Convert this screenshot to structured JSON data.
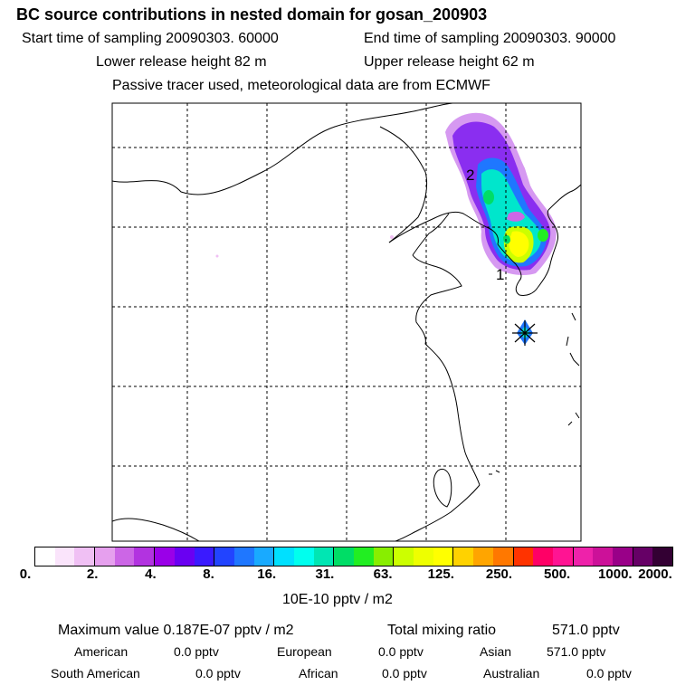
{
  "header": {
    "title": "BC  source contributions in nested domain for gosan_200903",
    "start_time": "Start time of sampling 20090303. 60000",
    "end_time": "End time of sampling 20090303. 90000",
    "lower_release": "Lower release height   82 m",
    "upper_release": "Upper release height   62 m",
    "tracer_note": "Passive tracer used, meteorological data are from ECMWF"
  },
  "map": {
    "labels": [
      {
        "text": "2"
      },
      {
        "text": "1"
      }
    ]
  },
  "colorbar": {
    "colors": [
      "#ffffff",
      "#fae4fb",
      "#f0c0f4",
      "#e6a0ee",
      "#cc66e6",
      "#b233e0",
      "#9a00e8",
      "#6a00f2",
      "#3a1aff",
      "#2244ff",
      "#1f77ff",
      "#19aaff",
      "#00e0ff",
      "#00ffee",
      "#00e6b3",
      "#00dd66",
      "#22ee22",
      "#88ee00",
      "#ccff00",
      "#eeff00",
      "#ffff00",
      "#ffd200",
      "#ffa500",
      "#ff7800",
      "#ff3300",
      "#ff0066",
      "#ff1493",
      "#ee22aa",
      "#cc1199",
      "#990088",
      "#660066",
      "#330033"
    ],
    "tick_labels": [
      "0.",
      "2.",
      "4.",
      "8.",
      "16.",
      "31.",
      "63.",
      "125.",
      "250.",
      "500.",
      "1000.",
      "2000."
    ],
    "units": "10E-10 pptv / m2"
  },
  "stats": {
    "max_value": "Maximum value  0.187E-07 pptv / m2",
    "total_label": "Total mixing ratio",
    "total_value": "571.0 pptv",
    "regions": [
      {
        "name": "American",
        "value": "0.0 pptv"
      },
      {
        "name": "European",
        "value": "0.0 pptv"
      },
      {
        "name": "Asian",
        "value": "571.0 pptv"
      },
      {
        "name": "South American",
        "value": "0.0 pptv"
      },
      {
        "name": "African",
        "value": "0.0 pptv"
      },
      {
        "name": "Australian",
        "value": "0.0 pptv"
      }
    ]
  }
}
